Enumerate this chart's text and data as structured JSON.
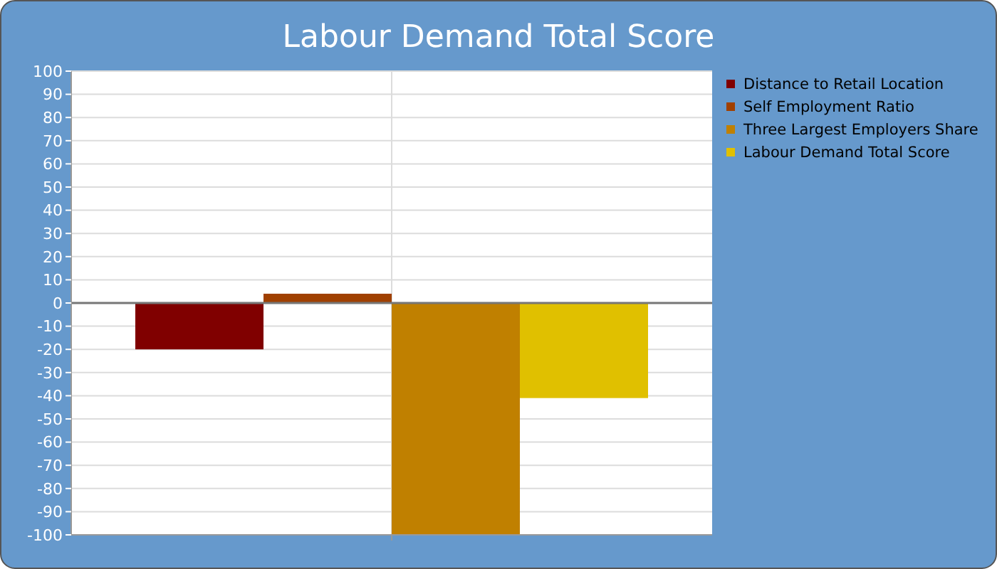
{
  "chart_data": {
    "type": "bar",
    "title": "Labour Demand Total Score",
    "categories": [
      null
    ],
    "series": [
      {
        "name": "Distance to Retail Location",
        "color": "#800000",
        "values": [
          -20
        ]
      },
      {
        "name": "Self Employment Ratio",
        "color": "#a04000",
        "values": [
          4
        ]
      },
      {
        "name": "Three Largest Employers Share",
        "color": "#c08000",
        "values": [
          -100
        ]
      },
      {
        "name": "Labour Demand Total Score",
        "color": "#e0c000",
        "values": [
          -41
        ]
      }
    ],
    "ylim": [
      -100,
      100
    ],
    "yticks": [
      -100,
      -90,
      -80,
      -70,
      -60,
      -50,
      -40,
      -30,
      -20,
      -10,
      0,
      10,
      20,
      30,
      40,
      50,
      60,
      70,
      80,
      90,
      100
    ],
    "grid": true,
    "legend": "top right"
  }
}
